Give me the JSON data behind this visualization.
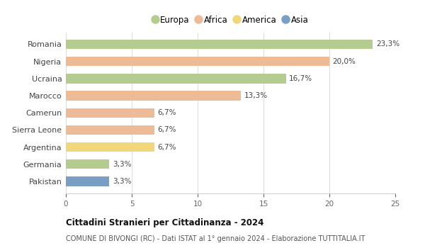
{
  "countries": [
    "Romania",
    "Nigeria",
    "Ucraina",
    "Marocco",
    "Camerun",
    "Sierra Leone",
    "Argentina",
    "Germania",
    "Pakistan"
  ],
  "values": [
    23.3,
    20.0,
    16.7,
    13.3,
    6.7,
    6.7,
    6.7,
    3.3,
    3.3
  ],
  "labels": [
    "23,3%",
    "20,0%",
    "16,7%",
    "13,3%",
    "6,7%",
    "6,7%",
    "6,7%",
    "3,3%",
    "3,3%"
  ],
  "colors": [
    "#b5cc90",
    "#edbb96",
    "#b5cc90",
    "#edbb96",
    "#edbb96",
    "#edbb96",
    "#f2d67a",
    "#b5cc90",
    "#7b9ec5"
  ],
  "legend": [
    {
      "label": "Europa",
      "color": "#b5cc90"
    },
    {
      "label": "Africa",
      "color": "#edbb96"
    },
    {
      "label": "America",
      "color": "#f2d67a"
    },
    {
      "label": "Asia",
      "color": "#7b9ec5"
    }
  ],
  "xlim": [
    0,
    25
  ],
  "xticks": [
    0,
    5,
    10,
    15,
    20,
    25
  ],
  "title": "Cittadini Stranieri per Cittadinanza - 2024",
  "subtitle": "COMUNE DI BIVONGI (RC) - Dati ISTAT al 1° gennaio 2024 - Elaborazione TUTTITALIA.IT",
  "background_color": "#ffffff",
  "bar_height": 0.55,
  "label_fontsize": 7.5,
  "ytick_fontsize": 8,
  "xtick_fontsize": 7.5
}
